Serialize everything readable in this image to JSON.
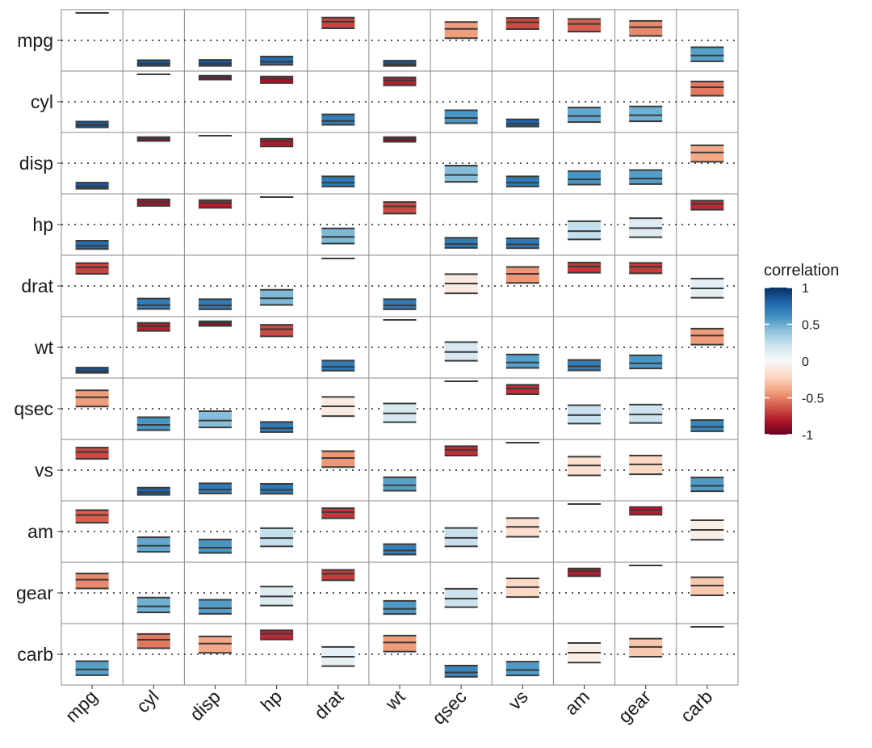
{
  "chart_data": {
    "type": "heatmap",
    "subtype": "correlation-interval-matrix",
    "variables": [
      "mpg",
      "cyl",
      "disp",
      "hp",
      "drat",
      "wt",
      "qsec",
      "vs",
      "am",
      "gear",
      "carb"
    ],
    "xlabels": [
      "mpg",
      "cyl",
      "disp",
      "hp",
      "drat",
      "wt",
      "qsec",
      "vs",
      "am",
      "gear",
      "carb"
    ],
    "ylabels": [
      "mpg",
      "cyl",
      "disp",
      "hp",
      "drat",
      "wt",
      "qsec",
      "vs",
      "am",
      "gear",
      "carb"
    ],
    "ylim": [
      -1,
      1
    ],
    "reference_line": 0,
    "correlation": [
      [
        1.0,
        -0.85,
        -0.85,
        -0.78,
        0.68,
        -0.87,
        0.42,
        0.66,
        0.6,
        0.48,
        -0.55
      ],
      [
        -0.85,
        1.0,
        0.9,
        0.83,
        -0.7,
        0.78,
        -0.59,
        -0.81,
        -0.52,
        -0.49,
        0.53
      ],
      [
        -0.85,
        0.9,
        1.0,
        0.79,
        -0.71,
        0.89,
        -0.43,
        -0.71,
        -0.59,
        -0.56,
        0.39
      ],
      [
        -0.78,
        0.83,
        0.79,
        1.0,
        -0.45,
        0.66,
        -0.71,
        -0.72,
        -0.24,
        -0.13,
        0.75
      ],
      [
        0.68,
        -0.7,
        -0.71,
        -0.45,
        1.0,
        -0.71,
        0.09,
        0.44,
        0.71,
        0.7,
        -0.09
      ],
      [
        -0.87,
        0.78,
        0.89,
        0.66,
        -0.71,
        1.0,
        -0.17,
        -0.55,
        -0.69,
        -0.58,
        0.43
      ],
      [
        0.42,
        -0.59,
        -0.43,
        -0.71,
        0.09,
        -0.17,
        1.0,
        0.74,
        -0.23,
        -0.21,
        -0.66
      ],
      [
        0.66,
        -0.81,
        -0.71,
        -0.72,
        0.44,
        -0.55,
        0.74,
        1.0,
        0.17,
        0.21,
        -0.57
      ],
      [
        0.6,
        -0.52,
        -0.59,
        -0.24,
        0.71,
        -0.69,
        -0.23,
        0.17,
        1.0,
        0.79,
        0.06
      ],
      [
        0.48,
        -0.49,
        -0.56,
        -0.13,
        0.7,
        -0.58,
        -0.21,
        0.21,
        0.79,
        1.0,
        0.27
      ],
      [
        -0.55,
        0.53,
        0.39,
        0.75,
        -0.09,
        0.43,
        -0.66,
        -0.57,
        0.06,
        0.27,
        1.0
      ]
    ],
    "lower": [
      [
        1.0,
        -0.93,
        -0.93,
        -0.89,
        0.44,
        -0.93,
        0.08,
        0.41,
        0.32,
        0.16,
        -0.76
      ],
      [
        -0.93,
        1.0,
        0.81,
        0.68,
        -0.84,
        0.6,
        -0.78,
        -0.9,
        -0.74,
        -0.71,
        0.22
      ],
      [
        -0.93,
        0.81,
        1.0,
        0.61,
        -0.85,
        0.78,
        -0.68,
        -0.85,
        -0.78,
        -0.76,
        0.05
      ],
      [
        -0.89,
        0.68,
        0.61,
        1.0,
        -0.69,
        0.4,
        -0.85,
        -0.86,
        -0.54,
        -0.46,
        0.54
      ],
      [
        0.44,
        -0.84,
        -0.85,
        -0.69,
        1.0,
        -0.85,
        -0.27,
        0.11,
        0.48,
        0.46,
        -0.43
      ],
      [
        -0.93,
        0.6,
        0.78,
        0.4,
        -0.85,
        1.0,
        -0.49,
        -0.75,
        -0.84,
        -0.77,
        0.1
      ],
      [
        0.08,
        -0.78,
        -0.68,
        -0.85,
        -0.27,
        -0.49,
        1.0,
        0.53,
        -0.54,
        -0.52,
        -0.82
      ],
      [
        0.41,
        -0.9,
        -0.85,
        -0.86,
        0.11,
        -0.75,
        0.53,
        1.0,
        -0.19,
        -0.15,
        -0.77
      ],
      [
        0.32,
        -0.74,
        -0.78,
        -0.54,
        0.48,
        -0.84,
        -0.54,
        -0.19,
        1.0,
        0.61,
        -0.3
      ],
      [
        0.16,
        -0.71,
        -0.76,
        -0.46,
        0.46,
        -0.77,
        -0.52,
        -0.15,
        0.61,
        1.0,
        -0.09
      ],
      [
        -0.76,
        0.22,
        0.05,
        0.54,
        -0.43,
        0.1,
        -0.82,
        -0.77,
        -0.3,
        -0.09,
        1.0
      ]
    ],
    "upper": [
      [
        1.0,
        -0.72,
        -0.71,
        -0.59,
        0.83,
        -0.74,
        0.67,
        0.82,
        0.78,
        0.71,
        -0.25
      ],
      [
        -0.72,
        1.0,
        0.95,
        0.92,
        -0.46,
        0.89,
        -0.31,
        -0.64,
        -0.21,
        -0.17,
        0.74
      ],
      [
        -0.71,
        0.95,
        1.0,
        0.89,
        -0.48,
        0.95,
        -0.09,
        -0.48,
        -0.29,
        -0.25,
        0.65
      ],
      [
        -0.59,
        0.92,
        0.89,
        1.0,
        -0.14,
        0.82,
        -0.48,
        -0.5,
        0.12,
        0.23,
        0.87
      ],
      [
        0.83,
        -0.46,
        -0.48,
        -0.14,
        1.0,
        -0.48,
        0.43,
        0.69,
        0.85,
        0.84,
        0.27
      ],
      [
        -0.74,
        0.89,
        0.95,
        0.82,
        -0.48,
        1.0,
        0.19,
        -0.26,
        -0.46,
        -0.29,
        0.68
      ],
      [
        0.67,
        -0.31,
        -0.09,
        -0.48,
        0.43,
        0.19,
        1.0,
        0.87,
        0.13,
        0.15,
        -0.41
      ],
      [
        0.82,
        -0.64,
        -0.48,
        -0.5,
        0.69,
        -0.26,
        0.87,
        1.0,
        0.49,
        0.53,
        -0.27
      ],
      [
        0.78,
        -0.21,
        -0.29,
        0.12,
        0.85,
        -0.46,
        0.13,
        0.49,
        1.0,
        0.89,
        0.41
      ],
      [
        0.71,
        -0.17,
        -0.25,
        0.23,
        0.84,
        -0.29,
        0.15,
        0.53,
        0.89,
        1.0,
        0.57
      ],
      [
        -0.25,
        0.74,
        0.65,
        0.87,
        0.27,
        0.68,
        -0.41,
        -0.27,
        0.41,
        0.57,
        1.0
      ]
    ],
    "legend": {
      "title": "correlation",
      "ticks": [
        "1",
        "0.5",
        "0",
        "-0.5",
        "-1"
      ],
      "tick_values": [
        1,
        0.5,
        0,
        -0.5,
        -1
      ],
      "position": "right"
    },
    "colors": {
      "scale": [
        "#67001F",
        "#B2182B",
        "#D6604D",
        "#F4A582",
        "#FDDBC7",
        "#F7F7F7",
        "#D1E5F0",
        "#92C5DE",
        "#4393C3",
        "#2166AC",
        "#053061"
      ],
      "grid": "#8a8a8a",
      "line": "#3a3a3a",
      "text": "#1a1a1a"
    }
  }
}
